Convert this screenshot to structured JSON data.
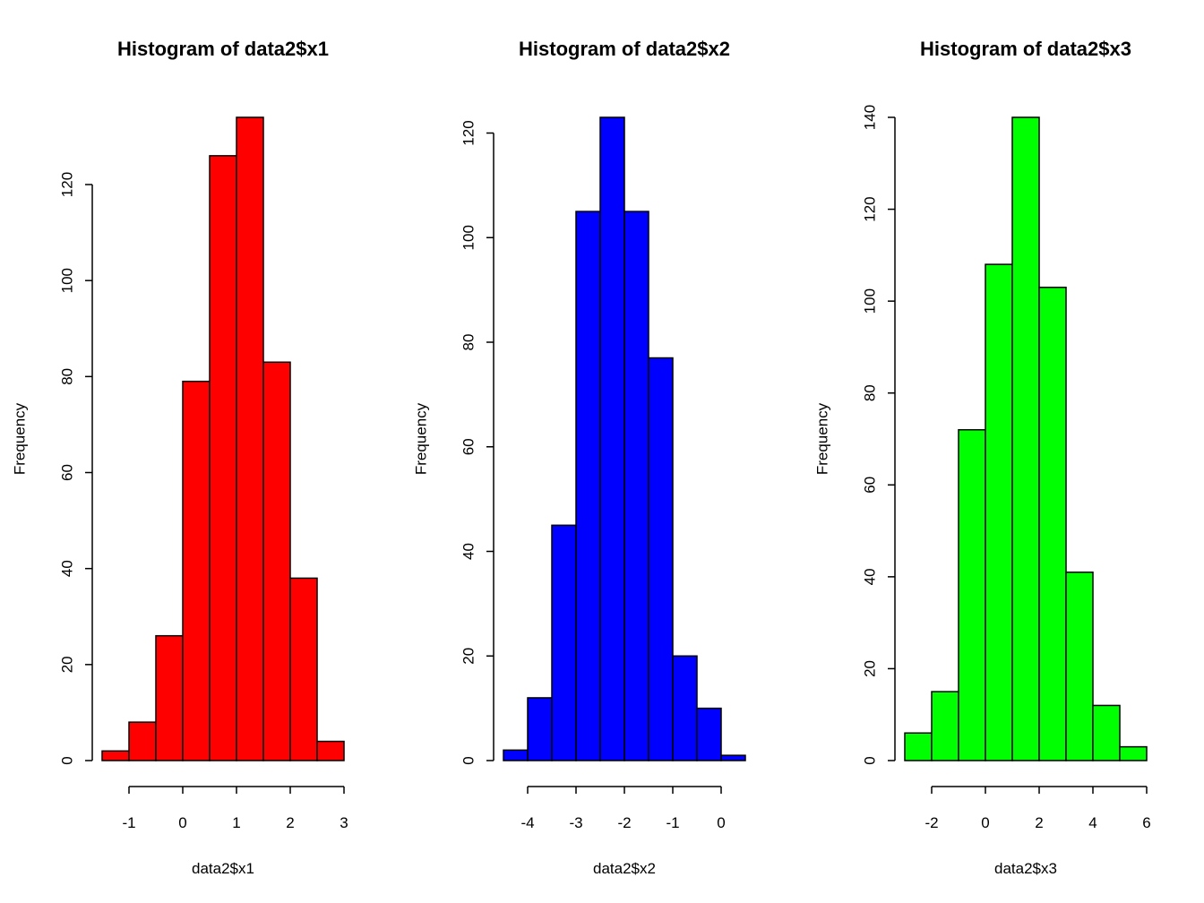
{
  "chart_data": [
    {
      "type": "bar",
      "title": "Histogram of data2$x1",
      "xlabel": "data2$x1",
      "ylabel": "Frequency",
      "fill": "#ff0000",
      "bin_edges": [
        -1.5,
        -1.0,
        -0.5,
        0.0,
        0.5,
        1.0,
        1.5,
        2.0,
        2.5,
        3.0
      ],
      "values": [
        2,
        8,
        26,
        79,
        126,
        134,
        83,
        38,
        4
      ],
      "xlim": [
        -1.5,
        3.0
      ],
      "ylim": [
        0,
        134
      ],
      "xticks": [
        -1,
        0,
        1,
        2,
        3
      ],
      "xtick_labels": [
        "-1",
        "0",
        "1",
        "2",
        "3"
      ],
      "yticks": [
        0,
        20,
        40,
        60,
        80,
        100,
        120
      ],
      "ytick_labels": [
        "0",
        "20",
        "40",
        "60",
        "80",
        "100",
        "120"
      ]
    },
    {
      "type": "bar",
      "title": "Histogram of data2$x2",
      "xlabel": "data2$x2",
      "ylabel": "Frequency",
      "fill": "#0000ff",
      "bin_edges": [
        -4.5,
        -4.0,
        -3.5,
        -3.0,
        -2.5,
        -2.0,
        -1.5,
        -1.0,
        -0.5,
        0.0,
        0.5
      ],
      "values": [
        2,
        12,
        45,
        105,
        123,
        105,
        77,
        20,
        10,
        1
      ],
      "xlim": [
        -4.5,
        0.5
      ],
      "ylim": [
        0,
        123
      ],
      "xticks": [
        -4,
        -3,
        -2,
        -1,
        0
      ],
      "xtick_labels": [
        "-4",
        "-3",
        "-2",
        "-1",
        "0"
      ],
      "yticks": [
        0,
        20,
        40,
        60,
        80,
        100,
        120
      ],
      "ytick_labels": [
        "0",
        "20",
        "40",
        "60",
        "80",
        "100",
        "120"
      ]
    },
    {
      "type": "bar",
      "title": "Histogram of data2$x3",
      "xlabel": "data2$x3",
      "ylabel": "Frequency",
      "fill": "#00ff00",
      "bin_edges": [
        -3,
        -2,
        -1,
        0,
        1,
        2,
        3,
        4,
        5,
        6
      ],
      "values": [
        6,
        15,
        72,
        108,
        140,
        103,
        41,
        12,
        3
      ],
      "xlim": [
        -3,
        6
      ],
      "ylim": [
        0,
        140
      ],
      "xticks": [
        -2,
        0,
        2,
        4,
        6
      ],
      "xtick_labels": [
        "-2",
        "0",
        "2",
        "4",
        "6"
      ],
      "yticks": [
        0,
        20,
        40,
        60,
        80,
        100,
        120,
        140
      ],
      "ytick_labels": [
        "0",
        "20",
        "40",
        "60",
        "80",
        "100",
        "120",
        "140"
      ]
    }
  ]
}
